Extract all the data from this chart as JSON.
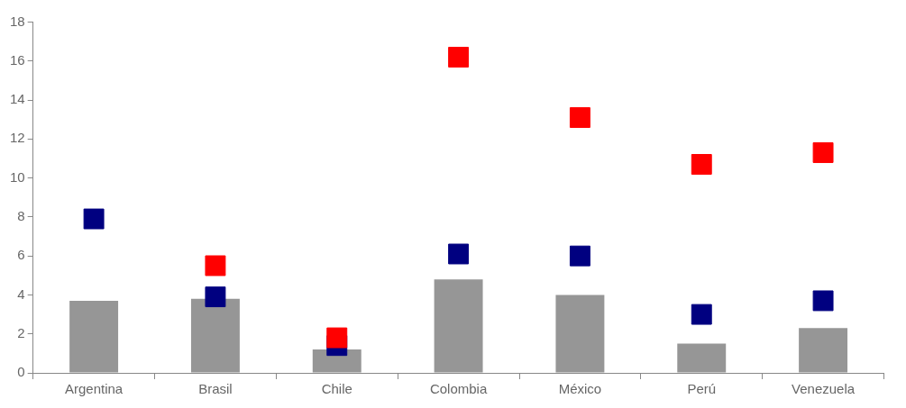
{
  "chart_data": {
    "type": "bar",
    "categories": [
      "Argentina",
      "Brasil",
      "Chile",
      "Colombia",
      "México",
      "Perú",
      "Venezuela"
    ],
    "ylim": [
      0,
      18
    ],
    "yticks": [
      0,
      2,
      4,
      6,
      8,
      10,
      12,
      14,
      16,
      18
    ],
    "marker": "square",
    "series": [
      {
        "color": "#969696",
        "values": [
          3.7,
          3.8,
          1.2,
          4.8,
          4.0,
          1.5,
          2.3
        ]
      },
      {
        "type": "scatter",
        "color": "#ff0000",
        "values": [
          null,
          5.5,
          1.8,
          16.2,
          13.1,
          10.7,
          11.3
        ]
      },
      {
        "type": "scatter",
        "color": "#000080",
        "values": [
          7.9,
          3.9,
          1.4,
          6.1,
          6.0,
          3.0,
          3.7
        ]
      }
    ]
  }
}
